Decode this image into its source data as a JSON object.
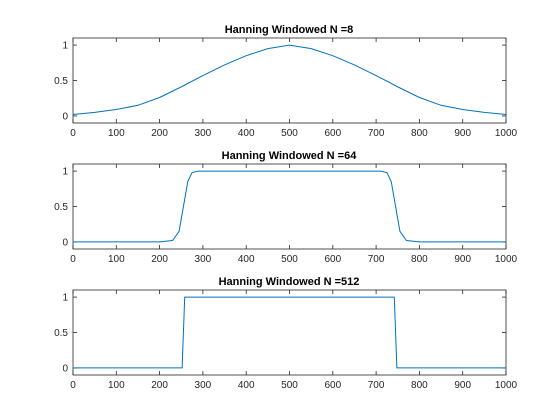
{
  "colors": {
    "series": "#0072BD",
    "axes": "#262626",
    "background": "#ffffff"
  },
  "chart_data": [
    {
      "type": "line",
      "title": "Hanning Windowed N =8",
      "xlabel": "",
      "ylabel": "",
      "xlim": [
        0,
        1000
      ],
      "ylim": [
        -0.1,
        1.1
      ],
      "xticks": [
        0,
        100,
        200,
        300,
        400,
        500,
        600,
        700,
        800,
        900,
        1000
      ],
      "yticks": [
        0,
        0.5,
        1
      ],
      "ytick_labels": [
        "0",
        "0.5",
        "1"
      ],
      "grid": false,
      "series": [
        {
          "x": [
            0,
            50,
            100,
            150,
            200,
            250,
            300,
            350,
            400,
            450,
            500,
            550,
            600,
            650,
            700,
            750,
            800,
            850,
            900,
            950,
            1000
          ],
          "y": [
            0.02,
            0.05,
            0.09,
            0.15,
            0.26,
            0.41,
            0.57,
            0.72,
            0.85,
            0.95,
            1.0,
            0.95,
            0.85,
            0.72,
            0.57,
            0.41,
            0.26,
            0.15,
            0.09,
            0.05,
            0.02
          ]
        }
      ]
    },
    {
      "type": "line",
      "title": "Hanning Windowed N =64",
      "xlabel": "",
      "ylabel": "",
      "xlim": [
        0,
        1000
      ],
      "ylim": [
        -0.1,
        1.1
      ],
      "xticks": [
        0,
        100,
        200,
        300,
        400,
        500,
        600,
        700,
        800,
        900,
        1000
      ],
      "yticks": [
        0,
        0.5,
        1
      ],
      "ytick_labels": [
        "0",
        "0.5",
        "1"
      ],
      "grid": false,
      "series": [
        {
          "x": [
            0,
            200,
            230,
            245,
            255,
            265,
            275,
            290,
            710,
            725,
            735,
            745,
            755,
            770,
            800,
            1000
          ],
          "y": [
            0.0,
            0.0,
            0.02,
            0.15,
            0.5,
            0.85,
            0.98,
            1.0,
            1.0,
            0.98,
            0.85,
            0.5,
            0.15,
            0.02,
            0.0,
            0.0
          ]
        }
      ]
    },
    {
      "type": "line",
      "title": "Hanning Windowed N =512",
      "xlabel": "",
      "ylabel": "",
      "xlim": [
        0,
        1000
      ],
      "ylim": [
        -0.1,
        1.1
      ],
      "xticks": [
        0,
        100,
        200,
        300,
        400,
        500,
        600,
        700,
        800,
        900,
        1000
      ],
      "yticks": [
        0,
        0.5,
        1
      ],
      "ytick_labels": [
        "0",
        "0.5",
        "1"
      ],
      "grid": false,
      "series": [
        {
          "x": [
            0,
            252,
            255,
            258,
            742,
            745,
            748,
            1000
          ],
          "y": [
            0.0,
            0.0,
            0.5,
            1.0,
            1.0,
            0.5,
            0.0,
            0.0
          ]
        }
      ]
    }
  ]
}
